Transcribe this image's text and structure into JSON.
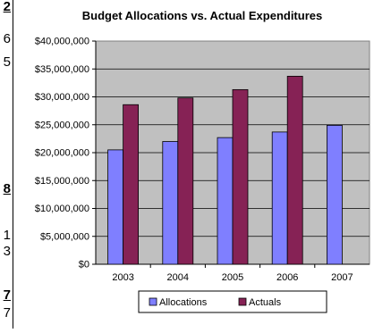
{
  "left_fragments": [
    {
      "text": "2",
      "bold": true
    },
    {
      "text": "6",
      "bold": false
    },
    {
      "text": "5",
      "bold": false
    },
    {
      "text": "8",
      "bold": true
    },
    {
      "text": "1",
      "bold": false
    },
    {
      "text": "3",
      "bold": false
    },
    {
      "text": "7",
      "bold": true
    },
    {
      "text": "7",
      "bold": false
    }
  ],
  "chart_data": {
    "type": "bar",
    "title": "Budget Allocations vs. Actual Expenditures",
    "xlabel": "",
    "ylabel": "",
    "categories": [
      "2003",
      "2004",
      "2005",
      "2006",
      "2007"
    ],
    "series": [
      {
        "name": "Allocations",
        "color": "#7f7fff",
        "values": [
          20500000,
          22000000,
          22700000,
          23700000,
          24900000
        ]
      },
      {
        "name": "Actuals",
        "color": "#862255",
        "values": [
          28600000,
          29800000,
          31300000,
          33700000,
          null
        ]
      }
    ],
    "ylim": [
      0,
      40000000
    ],
    "yticks": [
      "$0",
      "$5,000,000",
      "$10,000,000",
      "$15,000,000",
      "$20,000,000",
      "$25,000,000",
      "$30,000,000",
      "$35,000,000",
      "$40,000,000"
    ],
    "grid": true,
    "plot_background": "#c0c0c0",
    "legend_position": "bottom"
  }
}
